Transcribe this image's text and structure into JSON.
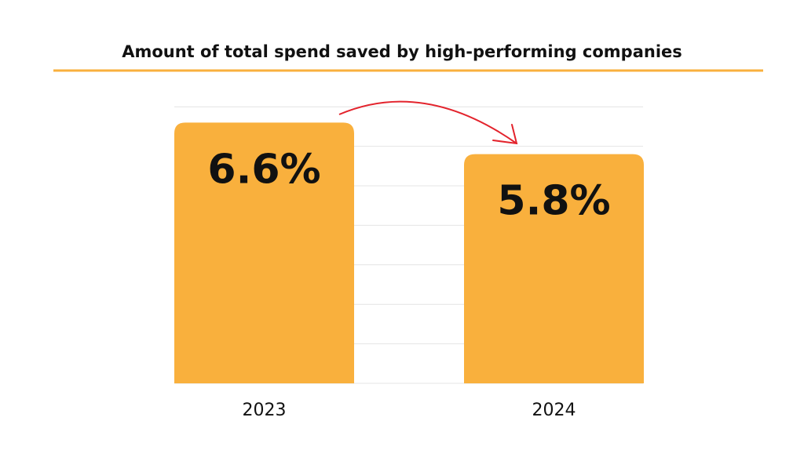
{
  "chart_data": {
    "type": "bar",
    "title": "Amount of total spend saved by high-performing companies",
    "categories": [
      "2023",
      "2024"
    ],
    "values": [
      6.6,
      5.8
    ],
    "data_labels": [
      "6.6%",
      "5.8%"
    ],
    "xlabel": "",
    "ylabel": "",
    "ylim": [
      0,
      7
    ],
    "grid": true,
    "legend": "none",
    "annotation": "arrow-from-2023-to-2024",
    "colors": {
      "bar": "#F9B03D",
      "title_rule": "#F9B03D",
      "arrow": "#E3232C",
      "grid": "#E4E4E4",
      "text": "#111111"
    }
  }
}
